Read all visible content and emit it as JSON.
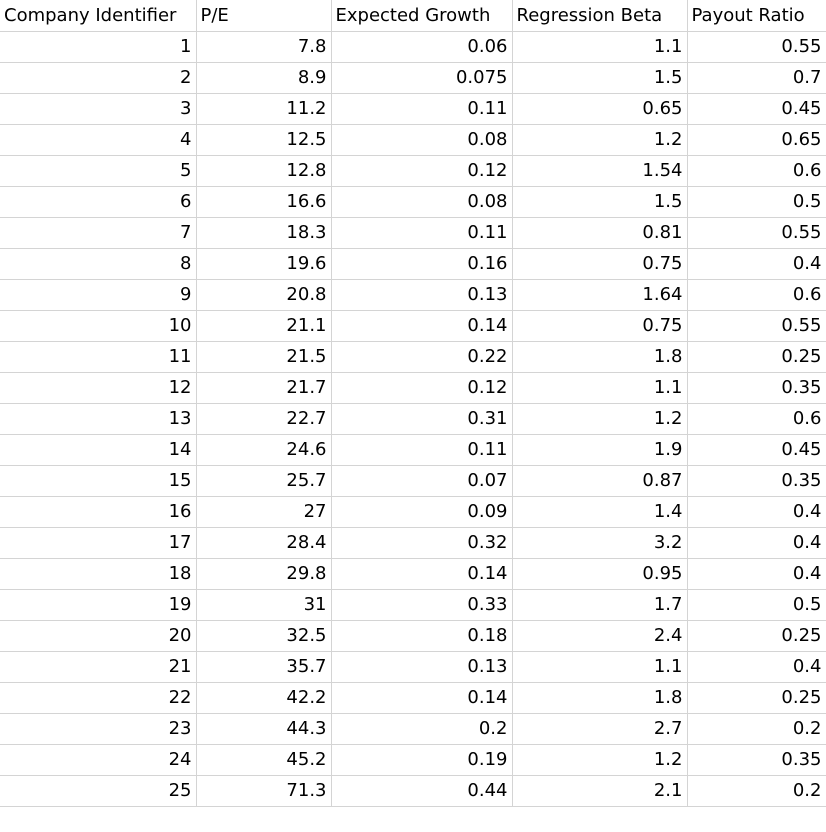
{
  "table": {
    "columns": [
      "Company Identifier",
      "P/E",
      "Expected Growth",
      "Regression Beta",
      "Payout Ratio"
    ],
    "rows": [
      [
        1,
        7.8,
        0.06,
        1.1,
        0.55
      ],
      [
        2,
        8.9,
        0.075,
        1.5,
        0.7
      ],
      [
        3,
        11.2,
        0.11,
        0.65,
        0.45
      ],
      [
        4,
        12.5,
        0.08,
        1.2,
        0.65
      ],
      [
        5,
        12.8,
        0.12,
        1.54,
        0.6
      ],
      [
        6,
        16.6,
        0.08,
        1.5,
        0.5
      ],
      [
        7,
        18.3,
        0.11,
        0.81,
        0.55
      ],
      [
        8,
        19.6,
        0.16,
        0.75,
        0.4
      ],
      [
        9,
        20.8,
        0.13,
        1.64,
        0.6
      ],
      [
        10,
        21.1,
        0.14,
        0.75,
        0.55
      ],
      [
        11,
        21.5,
        0.22,
        1.8,
        0.25
      ],
      [
        12,
        21.7,
        0.12,
        1.1,
        0.35
      ],
      [
        13,
        22.7,
        0.31,
        1.2,
        0.6
      ],
      [
        14,
        24.6,
        0.11,
        1.9,
        0.45
      ],
      [
        15,
        25.7,
        0.07,
        0.87,
        0.35
      ],
      [
        16,
        27,
        0.09,
        1.4,
        0.4
      ],
      [
        17,
        28.4,
        0.32,
        3.2,
        0.4
      ],
      [
        18,
        29.8,
        0.14,
        0.95,
        0.4
      ],
      [
        19,
        31,
        0.33,
        1.7,
        0.5
      ],
      [
        20,
        32.5,
        0.18,
        2.4,
        0.25
      ],
      [
        21,
        35.7,
        0.13,
        1.1,
        0.4
      ],
      [
        22,
        42.2,
        0.14,
        1.8,
        0.25
      ],
      [
        23,
        44.3,
        0.2,
        2.7,
        0.2
      ],
      [
        24,
        45.2,
        0.19,
        1.2,
        0.35
      ],
      [
        25,
        71.3,
        0.44,
        2.1,
        0.2
      ]
    ]
  }
}
